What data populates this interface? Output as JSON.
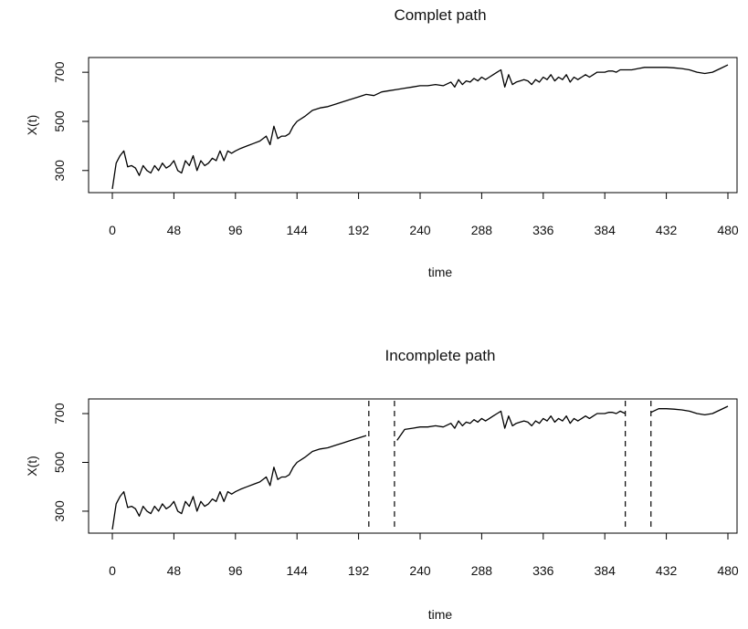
{
  "chart_data": [
    {
      "type": "line",
      "title": "Complet path",
      "xlabel": "time",
      "ylabel": "X(t)",
      "xlim": [
        0,
        480
      ],
      "ylim": [
        210,
        760
      ],
      "xticks": [
        0,
        48,
        96,
        144,
        192,
        240,
        288,
        336,
        384,
        432,
        480
      ],
      "yticks": [
        300,
        500,
        700
      ],
      "grid": false,
      "legend": "none",
      "line_color": "#000000",
      "series": [
        {
          "x": [
            0,
            3,
            6,
            9,
            12,
            15,
            18,
            21,
            24,
            27,
            30,
            33,
            36,
            39,
            42,
            45,
            48,
            51,
            54,
            57,
            60,
            63,
            66,
            69,
            72,
            75,
            78,
            81,
            84,
            87,
            90,
            93,
            96,
            100,
            105,
            110,
            115,
            120,
            123,
            126,
            129,
            132,
            135,
            138,
            141,
            144,
            150,
            156,
            162,
            168,
            174,
            180,
            186,
            192,
            198,
            204,
            210,
            216,
            222,
            228,
            234,
            240,
            246,
            252,
            258,
            264,
            267,
            270,
            273,
            276,
            279,
            282,
            285,
            288,
            291,
            294,
            297,
            300,
            303,
            306,
            309,
            312,
            315,
            318,
            321,
            324,
            327,
            330,
            333,
            336,
            339,
            342,
            345,
            348,
            351,
            354,
            357,
            360,
            363,
            366,
            369,
            372,
            375,
            378,
            381,
            384,
            387,
            390,
            393,
            396,
            400,
            405,
            410,
            415,
            420,
            426,
            432,
            438,
            444,
            450,
            456,
            462,
            468,
            474,
            480
          ],
          "y": [
            225,
            330,
            360,
            380,
            315,
            320,
            310,
            280,
            320,
            300,
            290,
            320,
            300,
            330,
            310,
            320,
            340,
            300,
            290,
            340,
            320,
            360,
            300,
            340,
            320,
            330,
            350,
            340,
            380,
            340,
            380,
            370,
            380,
            390,
            400,
            410,
            420,
            440,
            405,
            480,
            430,
            440,
            440,
            450,
            480,
            500,
            520,
            545,
            555,
            560,
            570,
            580,
            590,
            600,
            610,
            605,
            620,
            625,
            630,
            635,
            640,
            645,
            645,
            650,
            645,
            660,
            640,
            670,
            650,
            665,
            660,
            675,
            665,
            680,
            670,
            680,
            690,
            700,
            710,
            640,
            690,
            650,
            660,
            665,
            670,
            665,
            650,
            670,
            660,
            680,
            670,
            690,
            665,
            680,
            670,
            690,
            660,
            680,
            670,
            680,
            690,
            680,
            690,
            700,
            700,
            700,
            705,
            705,
            700,
            710,
            710,
            710,
            715,
            720,
            720,
            720,
            720,
            718,
            715,
            710,
            700,
            695,
            700,
            715,
            730
          ]
        }
      ]
    },
    {
      "type": "line",
      "title": "Incomplete path",
      "xlabel": "time",
      "ylabel": "X(t)",
      "xlim": [
        0,
        480
      ],
      "ylim": [
        210,
        760
      ],
      "xticks": [
        0,
        48,
        96,
        144,
        192,
        240,
        288,
        336,
        384,
        432,
        480
      ],
      "yticks": [
        300,
        500,
        700
      ],
      "grid": false,
      "legend": "none",
      "line_color": "#000000",
      "missing_intervals": [
        [
          200,
          220
        ],
        [
          400,
          420
        ]
      ],
      "series": [
        {
          "x": [
            0,
            3,
            6,
            9,
            12,
            15,
            18,
            21,
            24,
            27,
            30,
            33,
            36,
            39,
            42,
            45,
            48,
            51,
            54,
            57,
            60,
            63,
            66,
            69,
            72,
            75,
            78,
            81,
            84,
            87,
            90,
            93,
            96,
            100,
            105,
            110,
            115,
            120,
            123,
            126,
            129,
            132,
            135,
            138,
            141,
            144,
            150,
            156,
            162,
            168,
            174,
            180,
            186,
            192,
            198,
            null,
            222,
            228,
            234,
            240,
            246,
            252,
            258,
            264,
            267,
            270,
            273,
            276,
            279,
            282,
            285,
            288,
            291,
            294,
            297,
            300,
            303,
            306,
            309,
            312,
            315,
            318,
            321,
            324,
            327,
            330,
            333,
            336,
            339,
            342,
            345,
            348,
            351,
            354,
            357,
            360,
            363,
            366,
            369,
            372,
            375,
            378,
            381,
            384,
            387,
            390,
            393,
            396,
            400,
            null,
            420,
            426,
            432,
            438,
            444,
            450,
            456,
            462,
            468,
            474,
            480
          ],
          "y": [
            225,
            330,
            360,
            380,
            315,
            320,
            310,
            280,
            320,
            300,
            290,
            320,
            300,
            330,
            310,
            320,
            340,
            300,
            290,
            340,
            320,
            360,
            300,
            340,
            320,
            330,
            350,
            340,
            380,
            340,
            380,
            370,
            380,
            390,
            400,
            410,
            420,
            440,
            405,
            480,
            430,
            440,
            440,
            450,
            480,
            500,
            520,
            545,
            555,
            560,
            570,
            580,
            590,
            600,
            610,
            null,
            590,
            635,
            640,
            645,
            645,
            650,
            645,
            660,
            640,
            670,
            650,
            665,
            660,
            675,
            665,
            680,
            670,
            680,
            690,
            700,
            710,
            640,
            690,
            650,
            660,
            665,
            670,
            665,
            650,
            670,
            660,
            680,
            670,
            690,
            665,
            680,
            670,
            690,
            660,
            680,
            670,
            680,
            690,
            680,
            690,
            700,
            700,
            700,
            705,
            705,
            700,
            710,
            700,
            null,
            705,
            720,
            720,
            718,
            715,
            710,
            700,
            695,
            700,
            715,
            730
          ]
        }
      ]
    }
  ]
}
